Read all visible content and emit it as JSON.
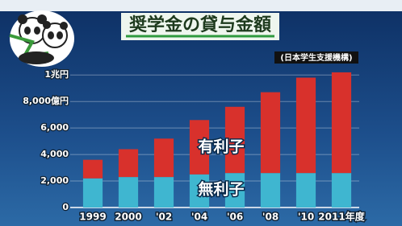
{
  "chart_data": {
    "type": "stacked-bar",
    "title": "奨学金の貸与金額",
    "subtitle": "(日本学生支援機構)",
    "categories": [
      "1999",
      "2000",
      "'02",
      "'04",
      "'06",
      "'08",
      "'10",
      "2011年度"
    ],
    "series": [
      {
        "name": "無利子",
        "color": "#3fb6d0",
        "values": [
          2200,
          2300,
          2300,
          2500,
          2600,
          2600,
          2600,
          2600
        ]
      },
      {
        "name": "有利子",
        "color": "#d8312c",
        "values": [
          1400,
          2100,
          2900,
          4100,
          5000,
          6100,
          7200,
          7600
        ]
      }
    ],
    "ylim": [
      0,
      10500
    ],
    "yticks": [
      0,
      {
        "value": 2000,
        "label": "2,000"
      },
      {
        "value": 4000,
        "label": "4,000"
      },
      {
        "value": 6000,
        "label": "6,000"
      },
      {
        "value": 8000,
        "label": "8,000億円"
      },
      {
        "value": 10000,
        "label": "1兆円"
      }
    ],
    "grid": true
  }
}
